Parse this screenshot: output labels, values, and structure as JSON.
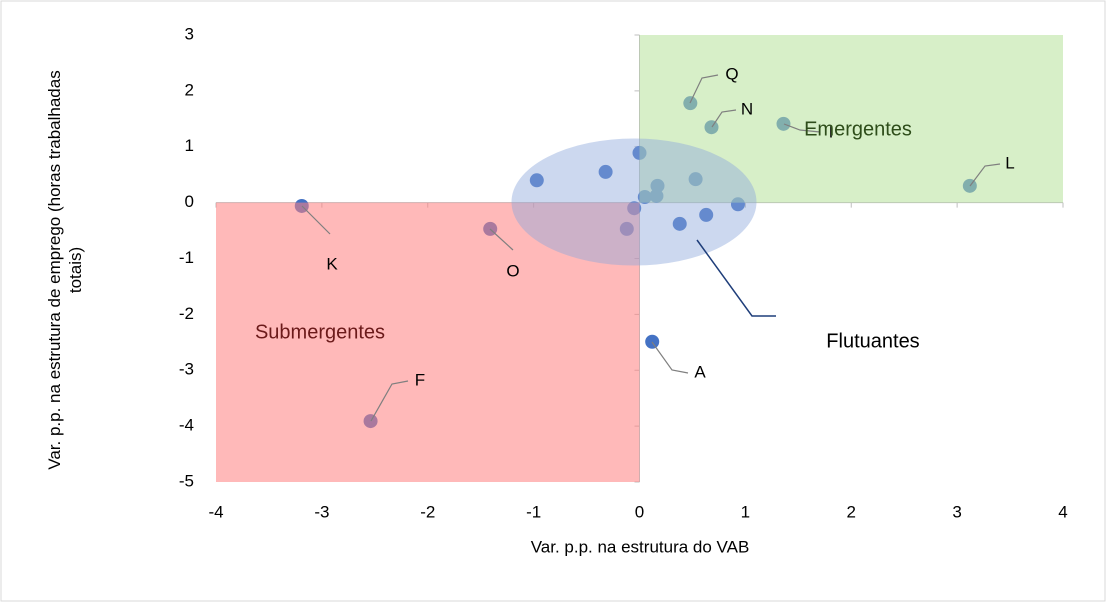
{
  "chart_data": {
    "type": "scatter",
    "xlabel": "Var. p.p. na estrutura do VAB",
    "ylabel": "Var. p.p. na estrutura de emprego (horas trabalhadas totais)",
    "xlim": [
      -4,
      4
    ],
    "xticks": [
      -4,
      -3,
      -2,
      -1,
      0,
      1,
      2,
      3,
      4
    ],
    "ylim": [
      -5,
      3
    ],
    "yticks": [
      -5,
      -4,
      -3,
      -2,
      -1,
      0,
      1,
      2,
      3
    ],
    "annotations": [
      "Submergentes",
      "Emergentes",
      "Flutuantes"
    ],
    "series": [
      {
        "color": "#4472c4",
        "labels": [
          "K",
          "O",
          "F",
          "A",
          "Q",
          "N",
          "I",
          "L",
          null,
          null,
          null,
          null,
          null,
          null,
          null,
          null,
          null,
          null,
          null,
          null
        ],
        "x": [
          -3.19,
          -1.41,
          -2.54,
          0.12,
          0.48,
          0.68,
          1.36,
          3.12,
          -0.97,
          -0.32,
          0.0,
          0.17,
          0.05,
          0.16,
          0.53,
          0.93,
          0.63,
          0.38,
          -0.05,
          -0.12
        ],
        "values": [
          -0.06,
          -0.47,
          -3.91,
          -2.49,
          1.78,
          1.35,
          1.41,
          0.3,
          0.4,
          0.55,
          0.89,
          0.3,
          0.1,
          0.12,
          0.42,
          -0.03,
          -0.22,
          -0.38,
          -0.1,
          -0.47
        ]
      }
    ]
  }
}
